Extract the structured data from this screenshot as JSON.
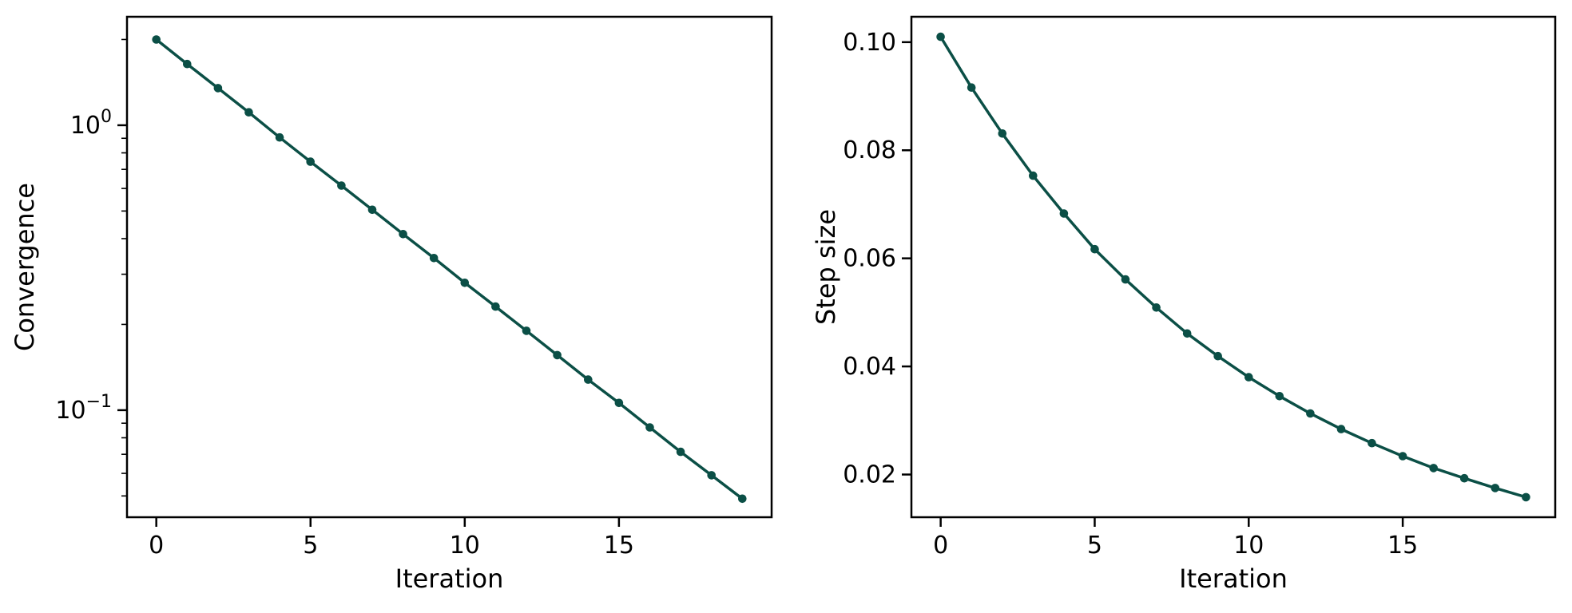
{
  "figure": {
    "background": "#ffffff",
    "series_color": "#0b4f46",
    "axis_color": "#000000"
  },
  "chart_data": [
    {
      "type": "line",
      "name": "convergence",
      "title": "",
      "xlabel": "Iteration",
      "ylabel": "Convergence",
      "yscale": "log",
      "grid": false,
      "legend": null,
      "marker": "circle",
      "color": "#0b4f46",
      "x": [
        0,
        1,
        2,
        3,
        4,
        5,
        6,
        7,
        8,
        9,
        10,
        11,
        12,
        13,
        14,
        15,
        16,
        17,
        18,
        19
      ],
      "values": [
        2.0,
        1.64,
        1.35,
        1.11,
        0.906,
        0.745,
        0.614,
        0.505,
        0.415,
        0.342,
        0.28,
        0.231,
        0.19,
        0.156,
        0.128,
        0.106,
        0.087,
        0.0714,
        0.0591,
        0.0489
      ],
      "xlim": [
        -0.95,
        19.95
      ],
      "ylim": [
        0.0421,
        2.403
      ],
      "xticks": [
        {
          "value": 0,
          "label": "0"
        },
        {
          "value": 5,
          "label": "5"
        },
        {
          "value": 10,
          "label": "10"
        },
        {
          "value": 15,
          "label": "15"
        }
      ],
      "yticks": [
        {
          "value": 1,
          "label": "10^0"
        },
        {
          "value": 0.1,
          "label": "10^−1"
        }
      ]
    },
    {
      "type": "line",
      "name": "step-size",
      "title": "",
      "xlabel": "Iteration",
      "ylabel": "Step size",
      "yscale": "linear",
      "grid": false,
      "legend": null,
      "marker": "circle",
      "color": "#0b4f46",
      "x": [
        0,
        1,
        2,
        3,
        4,
        5,
        6,
        7,
        8,
        9,
        10,
        11,
        12,
        13,
        14,
        15,
        16,
        17,
        18,
        19
      ],
      "values": [
        0.101,
        0.0916,
        0.0831,
        0.0753,
        0.0683,
        0.0617,
        0.0561,
        0.0509,
        0.0461,
        0.0419,
        0.038,
        0.0345,
        0.0313,
        0.0284,
        0.0258,
        0.0234,
        0.0212,
        0.0193,
        0.0175,
        0.0158
      ],
      "xlim": [
        -0.95,
        19.95
      ],
      "ylim": [
        0.0121,
        0.1047
      ],
      "xticks": [
        {
          "value": 0,
          "label": "0"
        },
        {
          "value": 5,
          "label": "5"
        },
        {
          "value": 10,
          "label": "10"
        },
        {
          "value": 15,
          "label": "15"
        }
      ],
      "yticks": [
        {
          "value": 0.02,
          "label": "0.02"
        },
        {
          "value": 0.04,
          "label": "0.04"
        },
        {
          "value": 0.06,
          "label": "0.06"
        },
        {
          "value": 0.08,
          "label": "0.08"
        },
        {
          "value": 0.1,
          "label": "0.10"
        }
      ]
    }
  ]
}
